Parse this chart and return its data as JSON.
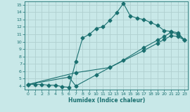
{
  "xlabel": "Humidex (Indice chaleur)",
  "bg_color": "#c8e8e8",
  "grid_color": "#b0d0d0",
  "line_color": "#1a7070",
  "xlim": [
    -0.5,
    23.5
  ],
  "ylim": [
    3.5,
    15.5
  ],
  "xticks": [
    0,
    1,
    2,
    3,
    4,
    5,
    6,
    7,
    8,
    9,
    10,
    11,
    12,
    13,
    14,
    15,
    16,
    17,
    18,
    19,
    20,
    21,
    22,
    23
  ],
  "yticks": [
    4,
    5,
    6,
    7,
    8,
    9,
    10,
    11,
    12,
    13,
    14,
    15
  ],
  "line1_x": [
    0,
    1,
    2,
    3,
    4,
    5,
    6,
    7,
    8,
    9,
    10,
    11,
    12,
    13,
    14,
    15,
    16,
    17,
    18,
    19,
    20,
    21,
    22,
    23
  ],
  "line1_y": [
    4.2,
    4.2,
    4.2,
    4.1,
    4.1,
    3.9,
    3.8,
    7.3,
    10.5,
    11.0,
    11.8,
    12.0,
    12.9,
    13.9,
    15.2,
    13.5,
    13.2,
    13.0,
    12.6,
    12.2,
    11.5,
    11.4,
    11.2,
    10.2
  ],
  "line2_x": [
    0,
    6,
    7,
    10,
    12,
    14,
    17,
    19,
    20,
    21,
    22,
    23
  ],
  "line2_y": [
    4.2,
    5.2,
    4.0,
    5.5,
    6.5,
    7.5,
    9.2,
    10.2,
    10.7,
    11.3,
    11.0,
    10.2
  ],
  "line3_x": [
    0,
    7,
    12,
    17,
    19,
    20,
    21,
    22,
    23
  ],
  "line3_y": [
    4.2,
    5.8,
    6.5,
    8.8,
    9.8,
    10.3,
    10.8,
    10.7,
    10.2
  ],
  "marker": "D",
  "markersize": 2.5,
  "linewidth": 0.8
}
